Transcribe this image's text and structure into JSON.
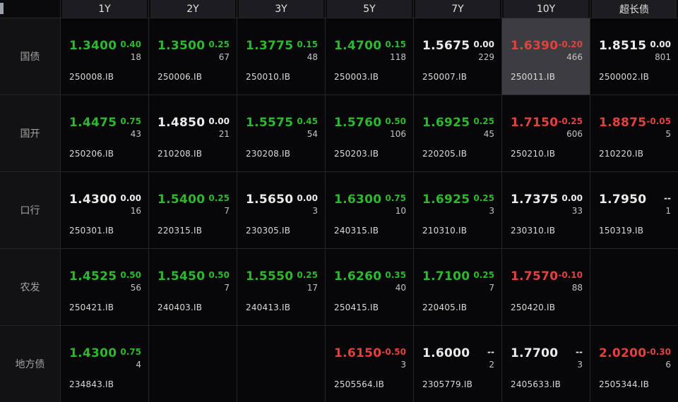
{
  "colors": {
    "up": "#2db92d",
    "down": "#e4413e",
    "flat": "#ebebeb",
    "count": "#c4c4c4",
    "code": "#dadada",
    "highlight_bg": "#3d3d41"
  },
  "columns": [
    "1Y",
    "2Y",
    "3Y",
    "5Y",
    "7Y",
    "10Y",
    "超长债"
  ],
  "rows": [
    {
      "label": "国债",
      "cells": [
        {
          "value": "1.3400",
          "change": "0.40",
          "count": "18",
          "code": "250008.IB",
          "trend": "up"
        },
        {
          "value": "1.3500",
          "change": "0.25",
          "count": "67",
          "code": "250006.IB",
          "trend": "up"
        },
        {
          "value": "1.3775",
          "change": "0.15",
          "count": "48",
          "code": "250010.IB",
          "trend": "up"
        },
        {
          "value": "1.4700",
          "change": "0.15",
          "count": "118",
          "code": "250003.IB",
          "trend": "up"
        },
        {
          "value": "1.5675",
          "change": "0.00",
          "count": "229",
          "code": "250007.IB",
          "trend": "flat"
        },
        {
          "value": "1.6390",
          "change": "-0.20",
          "count": "466",
          "code": "250011.IB",
          "trend": "down",
          "highlighted": true
        },
        {
          "value": "1.8515",
          "change": "0.00",
          "count": "801",
          "code": "2500002.IB",
          "trend": "flat"
        }
      ]
    },
    {
      "label": "国开",
      "cells": [
        {
          "value": "1.4475",
          "change": "0.75",
          "count": "43",
          "code": "250206.IB",
          "trend": "up"
        },
        {
          "value": "1.4850",
          "change": "0.00",
          "count": "21",
          "code": "210208.IB",
          "trend": "flat"
        },
        {
          "value": "1.5575",
          "change": "0.45",
          "count": "54",
          "code": "230208.IB",
          "trend": "up"
        },
        {
          "value": "1.5760",
          "change": "0.50",
          "count": "106",
          "code": "250203.IB",
          "trend": "up"
        },
        {
          "value": "1.6925",
          "change": "0.25",
          "count": "45",
          "code": "220205.IB",
          "trend": "up"
        },
        {
          "value": "1.7150",
          "change": "-0.25",
          "count": "606",
          "code": "250210.IB",
          "trend": "down"
        },
        {
          "value": "1.8875",
          "change": "-0.05",
          "count": "5",
          "code": "210220.IB",
          "trend": "down"
        }
      ]
    },
    {
      "label": "口行",
      "cells": [
        {
          "value": "1.4300",
          "change": "0.00",
          "count": "16",
          "code": "250301.IB",
          "trend": "flat"
        },
        {
          "value": "1.5400",
          "change": "0.25",
          "count": "7",
          "code": "220315.IB",
          "trend": "up"
        },
        {
          "value": "1.5650",
          "change": "0.00",
          "count": "3",
          "code": "230305.IB",
          "trend": "flat"
        },
        {
          "value": "1.6300",
          "change": "0.75",
          "count": "10",
          "code": "240315.IB",
          "trend": "up"
        },
        {
          "value": "1.6925",
          "change": "0.25",
          "count": "3",
          "code": "210310.IB",
          "trend": "up"
        },
        {
          "value": "1.7375",
          "change": "0.00",
          "count": "33",
          "code": "230310.IB",
          "trend": "flat"
        },
        {
          "value": "1.7950",
          "change": "--",
          "count": "1",
          "code": "150319.IB",
          "trend": "flat"
        }
      ]
    },
    {
      "label": "农发",
      "cells": [
        {
          "value": "1.4525",
          "change": "0.50",
          "count": "56",
          "code": "250421.IB",
          "trend": "up"
        },
        {
          "value": "1.5450",
          "change": "0.50",
          "count": "7",
          "code": "240403.IB",
          "trend": "up"
        },
        {
          "value": "1.5550",
          "change": "0.25",
          "count": "17",
          "code": "240413.IB",
          "trend": "up"
        },
        {
          "value": "1.6260",
          "change": "0.35",
          "count": "40",
          "code": "250415.IB",
          "trend": "up"
        },
        {
          "value": "1.7100",
          "change": "0.25",
          "count": "7",
          "code": "220405.IB",
          "trend": "up"
        },
        {
          "value": "1.7570",
          "change": "-0.10",
          "count": "88",
          "code": "250420.IB",
          "trend": "down"
        },
        null
      ]
    },
    {
      "label": "地方债",
      "cells": [
        {
          "value": "1.4300",
          "change": "0.75",
          "count": "4",
          "code": "234843.IB",
          "trend": "up"
        },
        null,
        null,
        {
          "value": "1.6150",
          "change": "-0.50",
          "count": "3",
          "code": "2505564.IB",
          "trend": "down"
        },
        {
          "value": "1.6000",
          "change": "--",
          "count": "2",
          "code": "2305779.IB",
          "trend": "flat"
        },
        {
          "value": "1.7700",
          "change": "--",
          "count": "3",
          "code": "2405633.IB",
          "trend": "flat"
        },
        {
          "value": "2.0200",
          "change": "-0.30",
          "count": "6",
          "code": "2505344.IB",
          "trend": "down"
        }
      ]
    }
  ]
}
